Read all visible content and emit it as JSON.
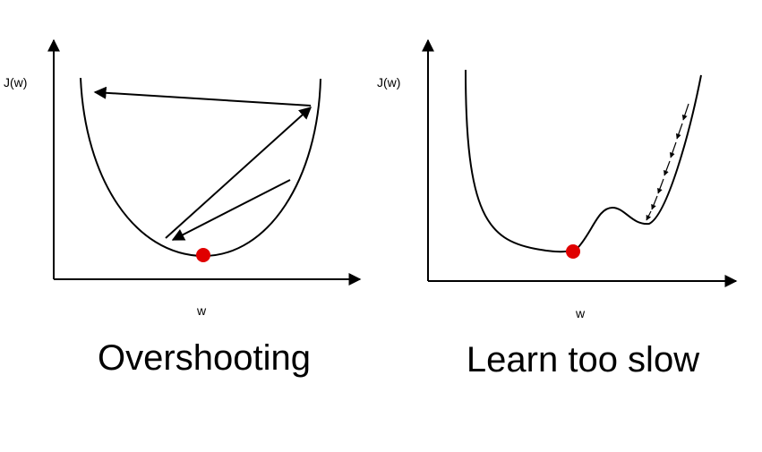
{
  "left_panel": {
    "ylabel": "J(w)",
    "xlabel": "w",
    "caption": "Overshooting"
  },
  "right_panel": {
    "ylabel": "J(w)",
    "xlabel": "w",
    "caption": "Learn too slow"
  },
  "colors": {
    "ink": "#000000",
    "point": "#e00000"
  }
}
